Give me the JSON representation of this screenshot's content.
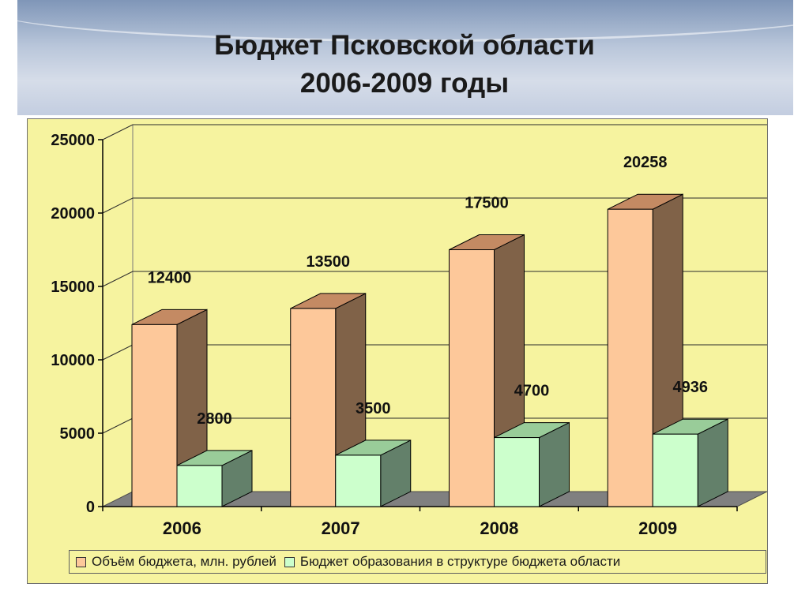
{
  "slide": {
    "title_line1": "Бюджет Псковской области",
    "title_line2": "2006-2009 годы"
  },
  "chart_data": {
    "type": "bar",
    "categories": [
      "2006",
      "2007",
      "2008",
      "2009"
    ],
    "series": [
      {
        "name": "Объём бюджета, млн. рублей",
        "values": [
          12400,
          13500,
          17500,
          20258
        ],
        "labels": [
          "12400",
          "13500",
          "17500",
          "20258"
        ],
        "color": "#fdc89a"
      },
      {
        "name": "Бюджет образования в структуре бюджета области",
        "values": [
          2800,
          3500,
          4700,
          4936
        ],
        "labels": [
          "2800",
          "3500",
          "4700",
          "4936"
        ],
        "color": "#ccffcc"
      }
    ],
    "ylim": [
      0,
      25000
    ],
    "yticks": [
      "0",
      "5000",
      "10000",
      "15000",
      "20000",
      "25000"
    ],
    "grid": true,
    "style": "3d-column",
    "legend_position": "bottom",
    "background_color": "#f6f39f"
  }
}
